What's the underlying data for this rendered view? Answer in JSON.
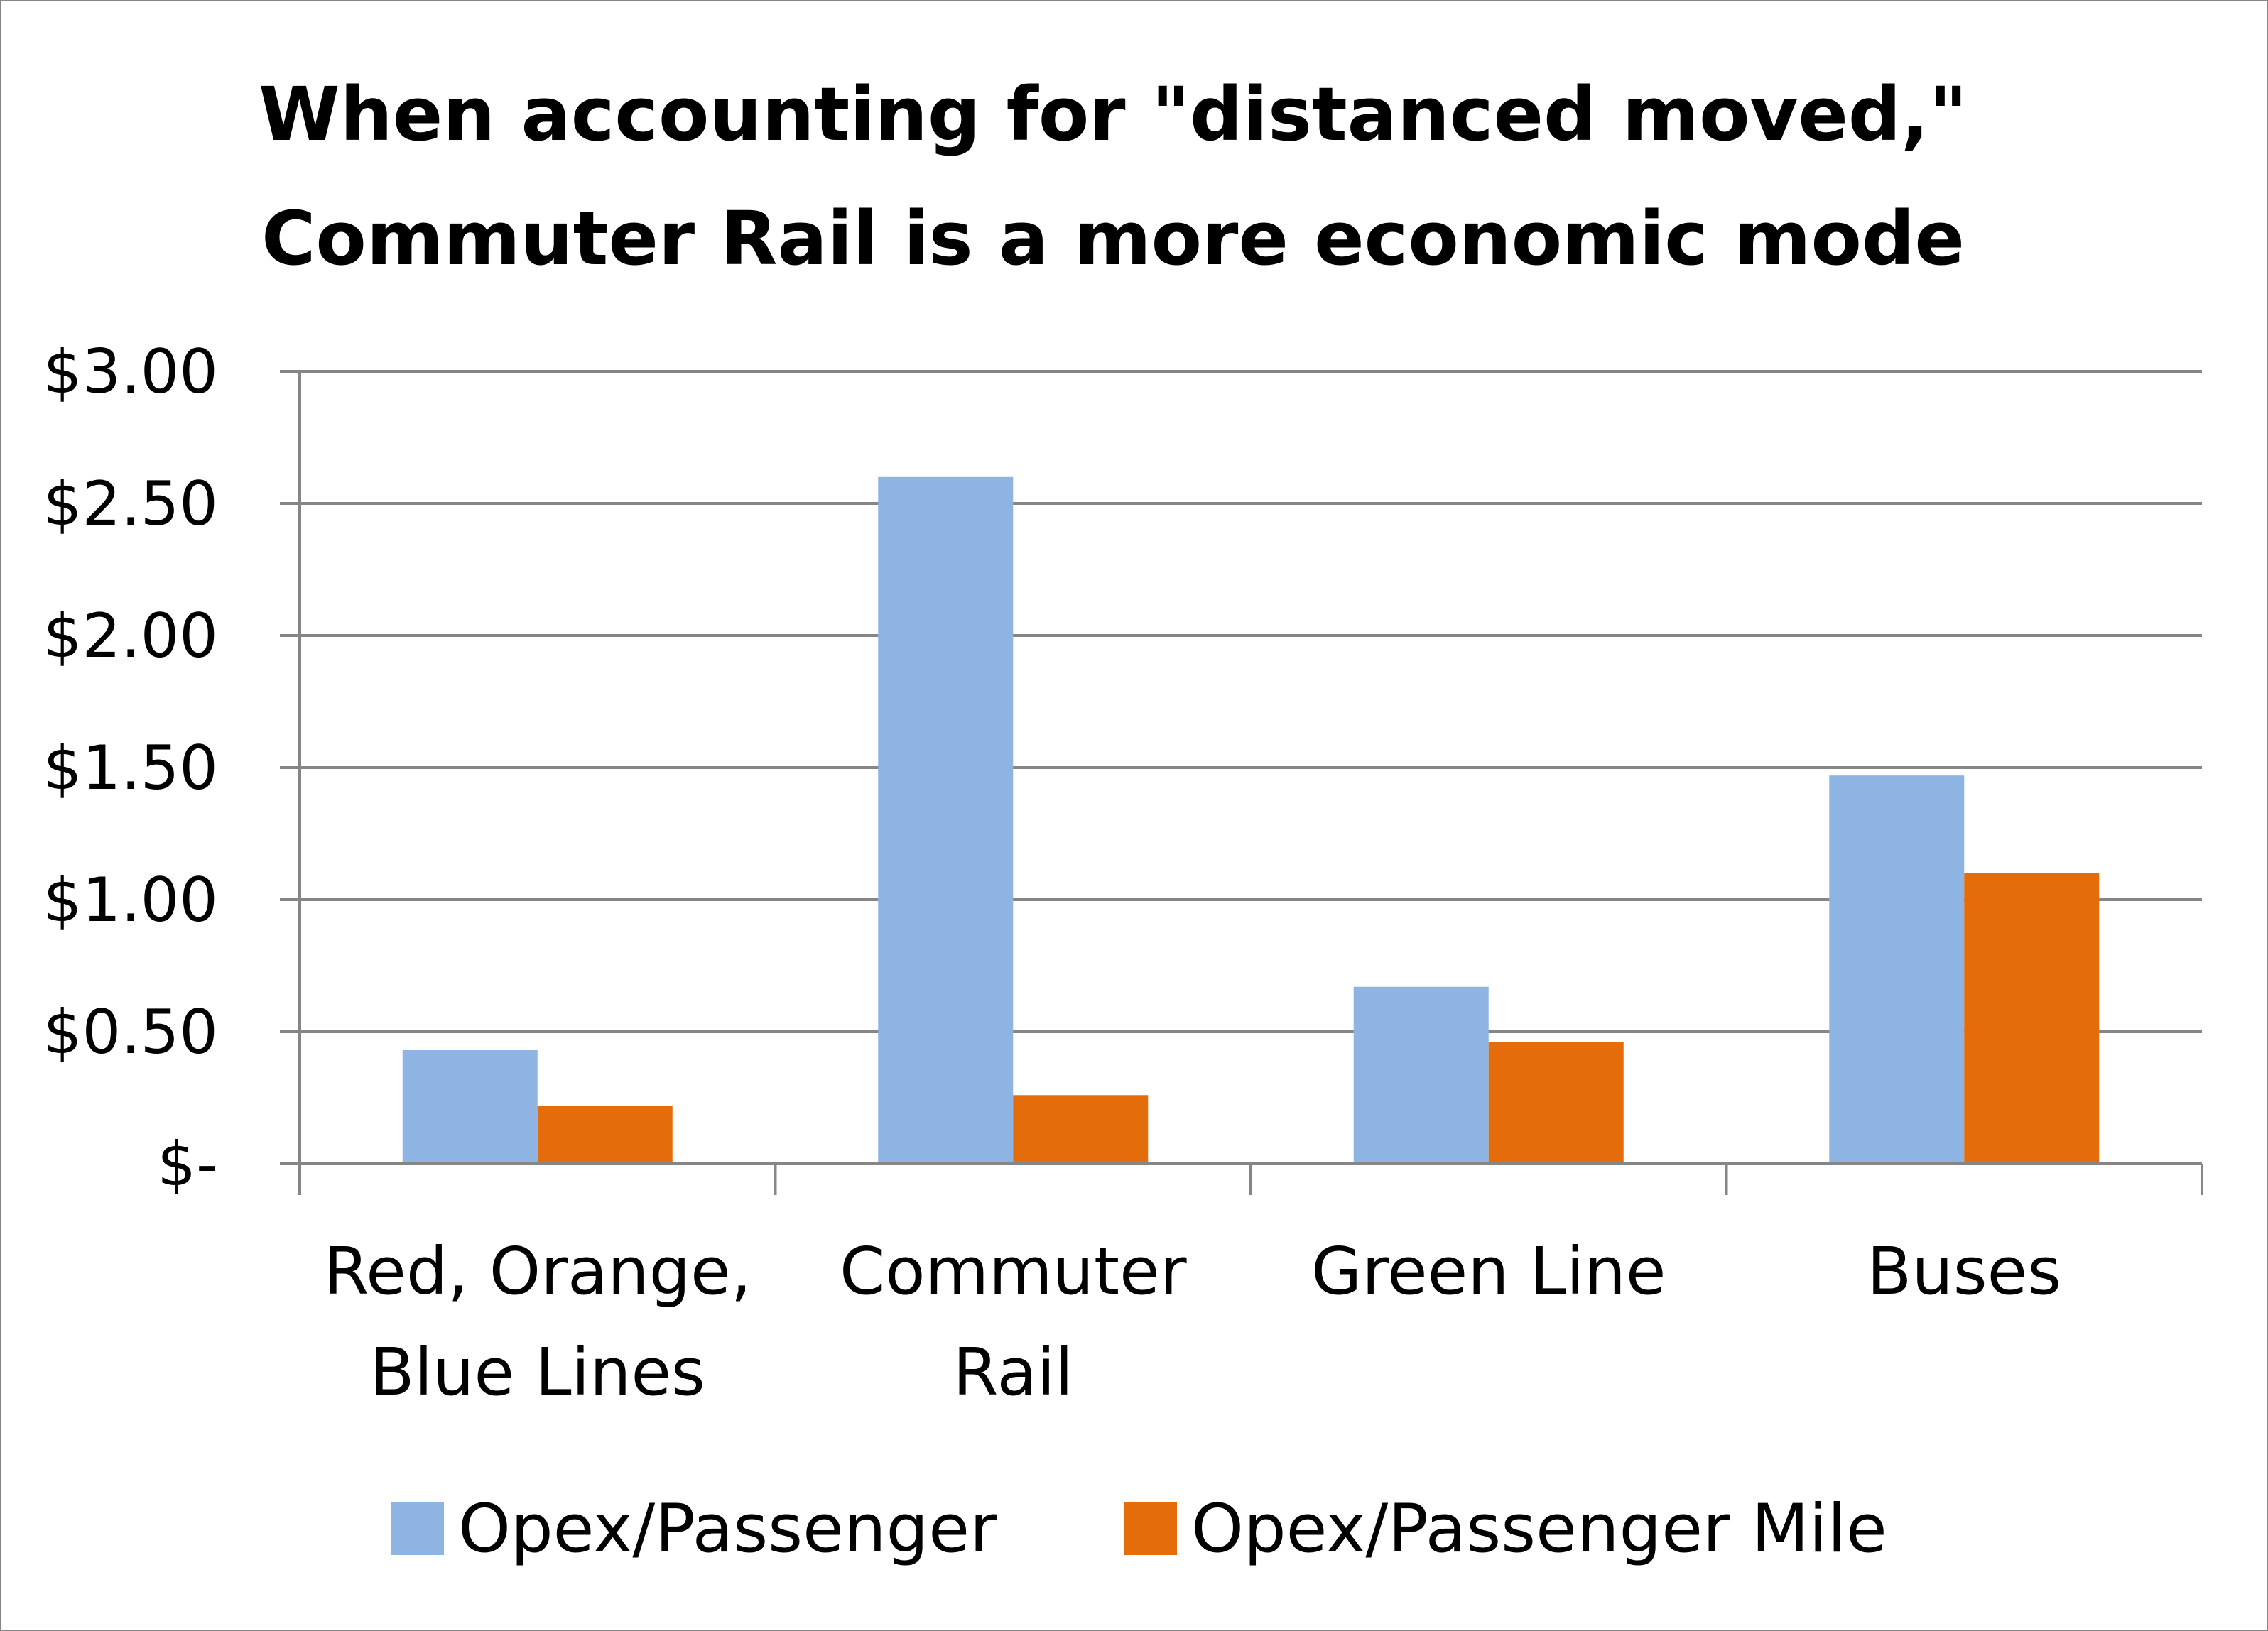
{
  "chart_data": {
    "type": "bar",
    "title_lines": [
      "When accounting for \"distanced moved,\"",
      "Commuter Rail is a more economic mode"
    ],
    "xlabel": "",
    "ylabel": "",
    "categories": [
      [
        "Red, Orange,",
        "Blue Lines"
      ],
      [
        "Commuter",
        "Rail"
      ],
      [
        "Green Line"
      ],
      [
        "Buses"
      ]
    ],
    "series": [
      {
        "name": "Opex/Passenger",
        "color": "#8EB4E3",
        "values": [
          0.43,
          2.6,
          0.67,
          1.47
        ]
      },
      {
        "name": "Opex/Passenger Mile",
        "color": "#E46C0A",
        "values": [
          0.22,
          0.26,
          0.46,
          1.1
        ]
      }
    ],
    "ylim": [
      0,
      3
    ],
    "ytick_values": [
      0,
      0.5,
      1,
      1.5,
      2,
      2.5,
      3
    ],
    "ytick_labels": [
      "$-",
      "$0.50",
      "$1.00",
      "$1.50",
      "$2.00",
      "$2.50",
      "$3.00"
    ],
    "grid": true,
    "legend_position": "bottom"
  }
}
